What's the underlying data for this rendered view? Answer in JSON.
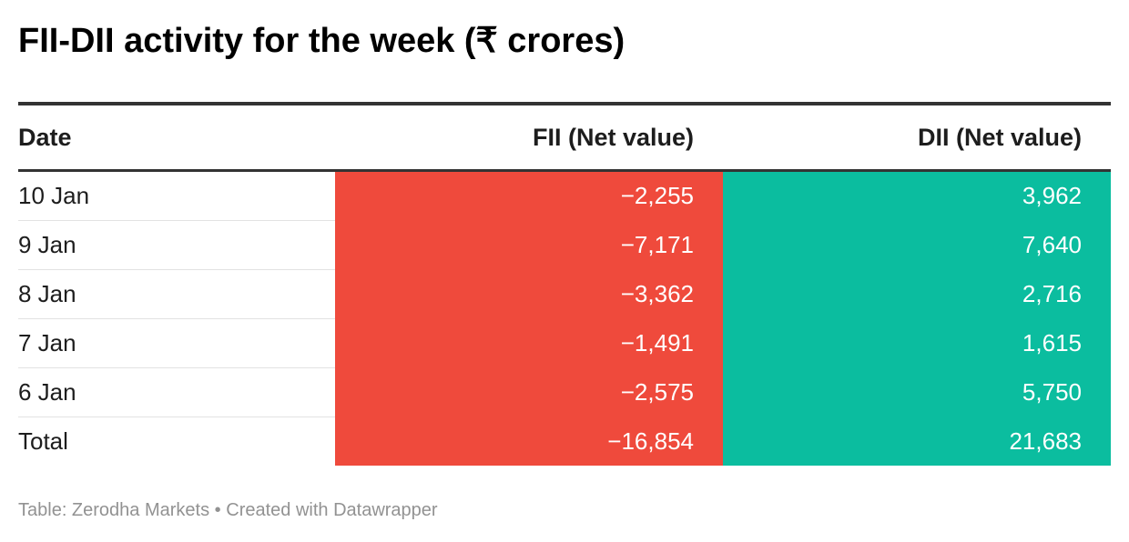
{
  "chart_data": {
    "type": "table",
    "title": "FII-DII activity for the week (₹ crores)",
    "columns": [
      "Date",
      "FII (Net value)",
      "DII (Net value)"
    ],
    "rows": [
      {
        "date": "10 Jan",
        "fii": "−2,255",
        "dii": "3,962"
      },
      {
        "date": "9 Jan",
        "fii": "−7,171",
        "dii": "7,640"
      },
      {
        "date": "8 Jan",
        "fii": "−3,362",
        "dii": "2,716"
      },
      {
        "date": "7 Jan",
        "fii": "−1,491",
        "dii": "1,615"
      },
      {
        "date": "6 Jan",
        "fii": "−2,575",
        "dii": "5,750"
      },
      {
        "date": "Total",
        "fii": "−16,854",
        "dii": "21,683"
      }
    ]
  },
  "colors": {
    "negative": "#ef4a3c",
    "positive": "#0bbd9f"
  },
  "footer": {
    "source": "Table: Zerodha Markets",
    "separator": "•",
    "credit": "Created with Datawrapper"
  }
}
